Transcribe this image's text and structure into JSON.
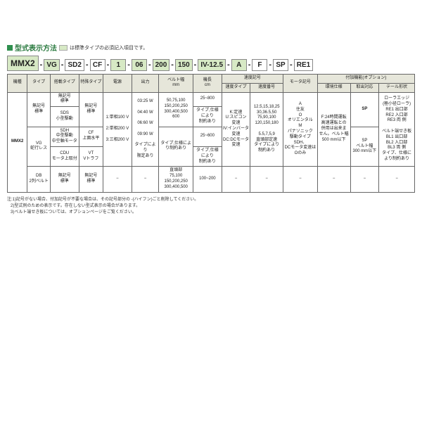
{
  "title": "型式表示方法",
  "legend": "は標準タイプの必須記入項目です。",
  "model_segments": [
    {
      "text": "MMX2",
      "green": true,
      "big": true
    },
    {
      "text": "VG",
      "green": true
    },
    {
      "text": "SD2",
      "green": false
    },
    {
      "text": "CF",
      "green": false
    },
    {
      "text": "1",
      "green": true
    },
    {
      "text": "06",
      "green": true
    },
    {
      "text": "200",
      "green": true
    },
    {
      "text": "150",
      "green": true
    },
    {
      "text": "IV-12.5",
      "green": true
    },
    {
      "text": "A",
      "green": true
    },
    {
      "text": "F",
      "green": false
    },
    {
      "text": "SP",
      "green": false
    },
    {
      "text": "RE1",
      "green": false
    }
  ],
  "headers": {
    "h1": "機種",
    "h2": "タイプ",
    "h3": "搭載タイプ",
    "h4": "特殊タイプ",
    "h5": "電源",
    "h6": "出力",
    "h7": "ベルト幅\nmm",
    "h8": "機長\ncm",
    "h9": "速度記号",
    "h9a": "速度タイプ",
    "h9b": "速度番号",
    "h10": "モータ記号",
    "h11": "付加機能(オプション)",
    "h11a": "環境仕様",
    "h11b": "取出対応",
    "h11c": "テール形状"
  },
  "row": {
    "c1": "MMX2",
    "c2a": "無記号\n標準",
    "c2b": "VG\n蛇行レス",
    "c2c": "DB\n2列ベルト",
    "c3a": "無記号\n標準",
    "c3b": "SDS\n小型駆動",
    "c3c": "SDH\n中型駆動\n中空軸モータ",
    "c3d": "CDU\nモータ上取付",
    "c3e": "無記号\n標準",
    "c4a": "無記号\n標準",
    "c4b": "CF\n上面水平",
    "c4c": "VT\nVトラフ",
    "c4d": "無記号\n標準",
    "c5": "1:単相100 V\n\n2:単相200 V\n\n3:三相200 V",
    "c6": "03:25 W\n\n04:40 W\n\n06:60 W\n\n09:90 W\n\nタイプにより\n限定あり",
    "c7a": "50,75,100\n150,200,250\n300,400,500\n600",
    "c7b": "タイプ,仕様によ\nり制約あり",
    "c7c": "直頭部\n75,100\n150,200,250\n300,400,500",
    "c8a": "25~800",
    "c8b": "タイプ,仕様\nにより\n制約あり",
    "c8c": "25~600",
    "c8d": "タイプ,仕様\nにより\n制約あり",
    "c8e": "100~200",
    "c9a": "K:定速\nU:スピコン\n変速\nIV:インバータ\n変速\nDC:DCモータ\n変速",
    "c9b": "12.5,15,18,25\n30,36.5,50\n75,90,100\n120,150,180\n\n5.5,7,5,9\n直頭部定速\nタイプにより\n制約あり",
    "c10": "A\n住友\nO\nオリエンタル\nM\nパナソニック\n駆動タイプSDH、\nDCモータ変速は\nOのみ",
    "c11a": "F:24時間運転\n高速運転との\n併用は出来ま\nせん。ベルト幅\n500 mm以下",
    "c11b1": "SP",
    "c11b2": "SP\nベルト幅\n300 mm以下",
    "c11c": "ローラエッジ\n(極小径ローラ)\nRE1 出口部\nRE2 入口部\nRE3 両 側\n\nベルト端せき板\nBL1 出口部\nBL2 入口部\nBL3 両 側\nタイプ、仕様に\nより制約あり",
    "dash": "−"
  },
  "colors": {
    "accent": "#2f8f4e",
    "green_bg": "#d7e9c5",
    "header_bg": "#e6e6da",
    "border": "#666"
  },
  "notes": {
    "lead": "注:",
    "n1": "1)記号がない場合、付加記号が不要な場合は、その記号部分の -(ハイフン)ごと削除してください。",
    "n2": "2)型式例のための表示です。存在しない型式表示の場合があります。",
    "n3": "3)ベルト端せき板については、オプションページをご覧ください。"
  }
}
